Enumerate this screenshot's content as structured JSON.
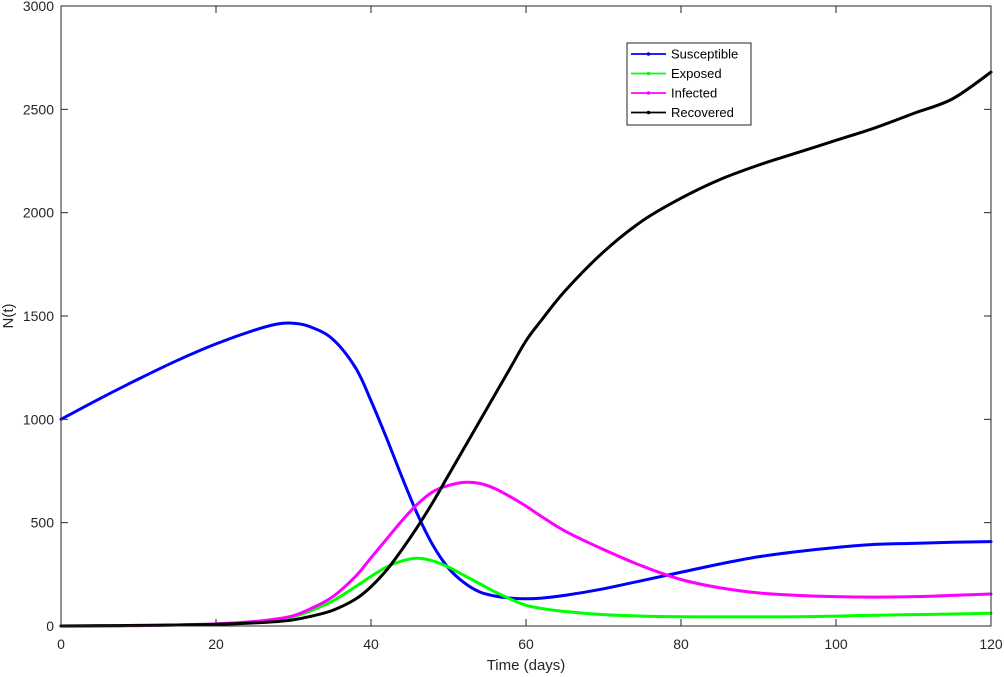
{
  "chart_data": {
    "type": "line",
    "title": "",
    "xlabel": "Time (days)",
    "ylabel": "N(t)",
    "xlim": [
      0,
      120
    ],
    "ylim": [
      0,
      3000
    ],
    "xticks": [
      0,
      20,
      40,
      60,
      80,
      100,
      120
    ],
    "yticks": [
      0,
      500,
      1000,
      1500,
      2000,
      2500,
      3000
    ],
    "grid": false,
    "legend_position": "top-right",
    "x": [
      0,
      5,
      10,
      15,
      20,
      25,
      28,
      30,
      32,
      35,
      38,
      40,
      42,
      44,
      46,
      48,
      50,
      52,
      54,
      56,
      58,
      60,
      62,
      65,
      70,
      75,
      80,
      85,
      90,
      95,
      100,
      105,
      110,
      115,
      120
    ],
    "series": [
      {
        "name": "Susceptible",
        "color": "#0000ff",
        "values": [
          1000,
          1100,
          1195,
          1285,
          1365,
          1432,
          1462,
          1465,
          1450,
          1390,
          1250,
          1090,
          910,
          720,
          540,
          390,
          280,
          210,
          165,
          145,
          135,
          132,
          135,
          148,
          180,
          220,
          260,
          300,
          335,
          360,
          380,
          395,
          400,
          405,
          408
        ]
      },
      {
        "name": "Exposed",
        "color": "#00ff00",
        "values": [
          0,
          1,
          2,
          5,
          10,
          20,
          30,
          45,
          70,
          120,
          190,
          240,
          285,
          315,
          328,
          315,
          285,
          245,
          205,
          165,
          130,
          100,
          85,
          70,
          55,
          48,
          45,
          44,
          44,
          45,
          48,
          52,
          55,
          58,
          62
        ]
      },
      {
        "name": "Infected",
        "color": "#ff00ff",
        "values": [
          0,
          1,
          2,
          5,
          10,
          22,
          35,
          50,
          80,
          140,
          240,
          330,
          420,
          510,
          590,
          650,
          680,
          695,
          690,
          665,
          625,
          580,
          530,
          460,
          370,
          290,
          225,
          185,
          160,
          148,
          142,
          140,
          142,
          148,
          155
        ]
      },
      {
        "name": "Recovered",
        "color": "#000000",
        "values": [
          0,
          1,
          3,
          5,
          8,
          15,
          22,
          30,
          45,
          75,
          130,
          190,
          270,
          370,
          480,
          600,
          730,
          860,
          990,
          1120,
          1250,
          1380,
          1480,
          1620,
          1810,
          1960,
          2070,
          2160,
          2230,
          2290,
          2350,
          2410,
          2480,
          2550,
          2680
        ]
      }
    ]
  }
}
